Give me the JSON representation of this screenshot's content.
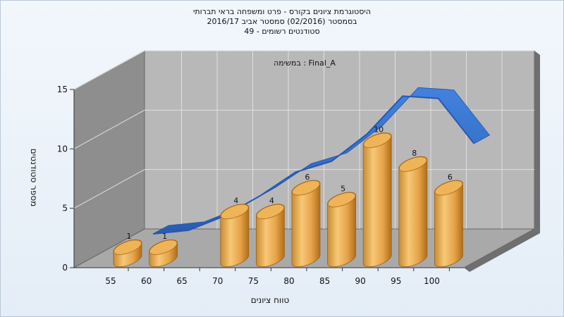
{
  "chart_data": {
    "type": "bar",
    "title_lines": [
      "היסטוגרמת ציונים בקורס - פרט ומשפחה בראי תברותי",
      "בסמסטר (02/2016) סמסטר אביב 2016/17",
      "סטודנטים רשומים - 49"
    ],
    "annotation": "במשימה : Final_A",
    "xlabel": "טווח ציונים",
    "ylabel": "מספר סטודנטים",
    "categories": [
      "55",
      "60",
      "65",
      "70",
      "75",
      "80",
      "85",
      "90",
      "95",
      "100"
    ],
    "values": [
      1,
      1,
      0,
      4,
      4,
      6,
      5,
      10,
      8,
      6
    ],
    "data_labels": [
      "1",
      "1",
      "",
      "4",
      "4",
      "6",
      "5",
      "10",
      "8",
      "6"
    ],
    "yticks": [
      0,
      5,
      10,
      15
    ],
    "ylim": [
      0,
      15
    ],
    "grid": true,
    "trend_series_values": [
      0,
      0.3,
      1.5,
      3.2,
      5.2,
      6.1,
      8.4,
      11.6,
      11.4,
      7.6
    ],
    "colors": {
      "bar_light": "#f6c16a",
      "bar_mid": "#e8a54c",
      "bar_dark": "#b9761e",
      "bar_top": "#f0b458",
      "trend": "#2f6fd0",
      "back_wall": "#b8b8b8",
      "side_wall": "#8e8e8e",
      "floor": "#a9a9a9",
      "grid": "#e0e0e0"
    }
  }
}
